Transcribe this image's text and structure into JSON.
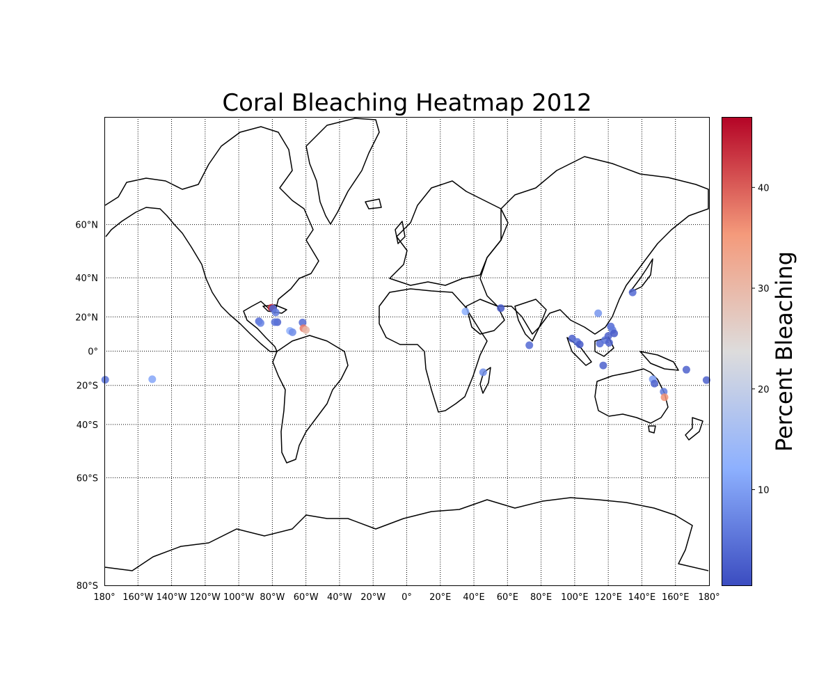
{
  "title": "Coral Bleaching Heatmap 2012",
  "colorbar": {
    "label": "Percent Bleaching",
    "ticks": [
      "10",
      "20",
      "30",
      "40"
    ],
    "range": [
      0.5,
      47
    ],
    "colormap": "coolwarm",
    "colors": {
      "low": "#3b4cc0",
      "mid": "#dddddd",
      "high": "#b40426"
    }
  },
  "axes": {
    "lon_ticks": [
      "180°",
      "160°W",
      "140°W",
      "120°W",
      "100°W",
      "80°W",
      "60°W",
      "40°W",
      "20°W",
      "0°",
      "20°E",
      "40°E",
      "60°E",
      "80°E",
      "100°E",
      "120°E",
      "140°E",
      "160°E",
      "180°"
    ],
    "lat_ticks": [
      "60°N",
      "40°N",
      "20°N",
      "0°",
      "20°S",
      "40°S",
      "60°S",
      "80°S"
    ],
    "projection": "mercator",
    "lon_range": [
      -180,
      180
    ],
    "lat_range": [
      -80,
      80
    ]
  },
  "chart_data": {
    "type": "scatter",
    "title": "Coral Bleaching Heatmap 2012",
    "xlabel": "",
    "ylabel": "",
    "points": [
      {
        "lon": -80.5,
        "lat": 25.0,
        "value": 44
      },
      {
        "lon": -79.5,
        "lat": 24.5,
        "value": 3
      },
      {
        "lon": -78.0,
        "lat": 22.5,
        "value": 6
      },
      {
        "lon": -88.0,
        "lat": 17.5,
        "value": 4
      },
      {
        "lon": -87.0,
        "lat": 16.5,
        "value": 7
      },
      {
        "lon": -77.0,
        "lat": 17.0,
        "value": 3
      },
      {
        "lon": -78.5,
        "lat": 17.0,
        "value": 5
      },
      {
        "lon": -62.0,
        "lat": 16.8,
        "value": 4
      },
      {
        "lon": -61.5,
        "lat": 13.5,
        "value": 38
      },
      {
        "lon": -60.0,
        "lat": 12.5,
        "value": 30
      },
      {
        "lon": -69.5,
        "lat": 12.0,
        "value": 13
      },
      {
        "lon": -68.0,
        "lat": 11.2,
        "value": 8
      },
      {
        "lon": 35.0,
        "lat": 23.0,
        "value": 12
      },
      {
        "lon": 56.0,
        "lat": 24.8,
        "value": 2
      },
      {
        "lon": 73.0,
        "lat": 3.5,
        "value": 4
      },
      {
        "lon": 45.5,
        "lat": -12.5,
        "value": 8
      },
      {
        "lon": 98.5,
        "lat": 7.5,
        "value": 3
      },
      {
        "lon": 101.5,
        "lat": 5.5,
        "value": 5
      },
      {
        "lon": 103.0,
        "lat": 4.0,
        "value": 2
      },
      {
        "lon": 114.0,
        "lat": 22.0,
        "value": 9
      },
      {
        "lon": 115.0,
        "lat": 4.5,
        "value": 4
      },
      {
        "lon": 118.0,
        "lat": 6.5,
        "value": 5
      },
      {
        "lon": 120.0,
        "lat": 9.0,
        "value": 3
      },
      {
        "lon": 121.5,
        "lat": 14.5,
        "value": 4
      },
      {
        "lon": 122.5,
        "lat": 12.5,
        "value": 6
      },
      {
        "lon": 123.5,
        "lat": 10.5,
        "value": 2
      },
      {
        "lon": 120.5,
        "lat": 5.0,
        "value": 3
      },
      {
        "lon": 117.0,
        "lat": -8.5,
        "value": 3
      },
      {
        "lon": 134.5,
        "lat": 33.0,
        "value": 4
      },
      {
        "lon": 146.5,
        "lat": -16.5,
        "value": 10
      },
      {
        "lon": 147.5,
        "lat": -19.0,
        "value": 3
      },
      {
        "lon": 153.0,
        "lat": -23.5,
        "value": 6
      },
      {
        "lon": 153.5,
        "lat": -26.5,
        "value": 36
      },
      {
        "lon": 166.5,
        "lat": -11.0,
        "value": 3
      },
      {
        "lon": 178.5,
        "lat": -17.0,
        "value": 3
      },
      {
        "lon": -179.5,
        "lat": -16.8,
        "value": 5
      },
      {
        "lon": -151.5,
        "lat": -16.5,
        "value": 11
      }
    ]
  }
}
